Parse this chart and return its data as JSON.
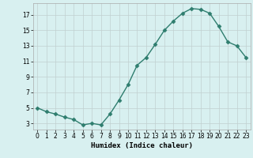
{
  "x": [
    0,
    1,
    2,
    3,
    4,
    5,
    6,
    7,
    8,
    9,
    10,
    11,
    12,
    13,
    14,
    15,
    16,
    17,
    18,
    19,
    20,
    21,
    22,
    23
  ],
  "y": [
    5.0,
    4.5,
    4.2,
    3.8,
    3.5,
    2.8,
    3.0,
    2.8,
    4.2,
    6.0,
    8.0,
    10.5,
    11.5,
    13.2,
    15.0,
    16.2,
    17.2,
    17.8,
    17.7,
    17.2,
    15.5,
    13.5,
    13.0,
    11.5
  ],
  "line_color": "#2e7d6e",
  "marker": "D",
  "markersize": 2.5,
  "linewidth": 1.0,
  "bg_color": "#d8f0f0",
  "grid_color": "#c0d0d0",
  "xlabel": "Humidex (Indice chaleur)",
  "xlabel_fontsize": 6.5,
  "yticks": [
    3,
    5,
    7,
    9,
    11,
    13,
    15,
    17
  ],
  "xticks": [
    0,
    1,
    2,
    3,
    4,
    5,
    6,
    7,
    8,
    9,
    10,
    11,
    12,
    13,
    14,
    15,
    16,
    17,
    18,
    19,
    20,
    21,
    22,
    23
  ],
  "ylim": [
    2.2,
    18.5
  ],
  "xlim": [
    -0.5,
    23.5
  ],
  "tick_fontsize": 5.5
}
